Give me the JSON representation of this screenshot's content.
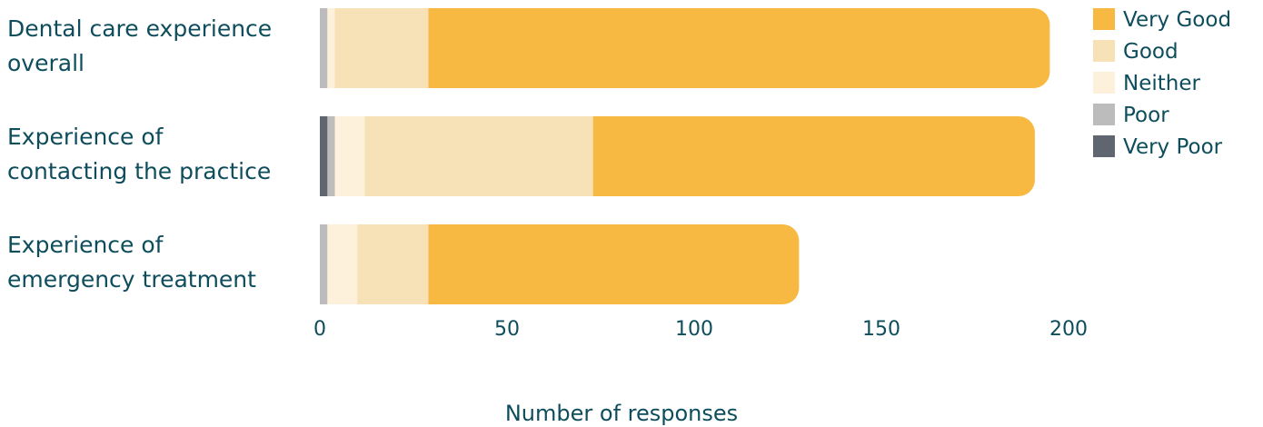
{
  "chart_data": {
    "type": "bar",
    "orientation": "horizontal",
    "stacked": true,
    "categories": [
      [
        "Dental care experience",
        "overall"
      ],
      [
        "Experience of",
        "contacting the practice"
      ],
      [
        "Experience of",
        "emergency treatment"
      ]
    ],
    "series": [
      {
        "name": "Very Poor",
        "color": "#5f6670",
        "values": [
          0,
          2,
          0
        ]
      },
      {
        "name": "Poor",
        "color": "#bcbcbc",
        "values": [
          2,
          2,
          2
        ]
      },
      {
        "name": "Neither",
        "color": "#fdf1db",
        "values": [
          2,
          8,
          8
        ]
      },
      {
        "name": "Good",
        "color": "#f7e1b7",
        "values": [
          25,
          61,
          19
        ]
      },
      {
        "name": "Very Good",
        "color": "#f8b942",
        "values": [
          166,
          118,
          99
        ]
      }
    ],
    "legend_order": [
      "Very Good",
      "Good",
      "Neither",
      "Poor",
      "Very Poor"
    ],
    "xlim": [
      0,
      200
    ],
    "xticks": [
      "0",
      "50",
      "100",
      "150",
      "200"
    ],
    "xlabel": "Number of responses",
    "grid": false,
    "legend_position": "top-right"
  }
}
